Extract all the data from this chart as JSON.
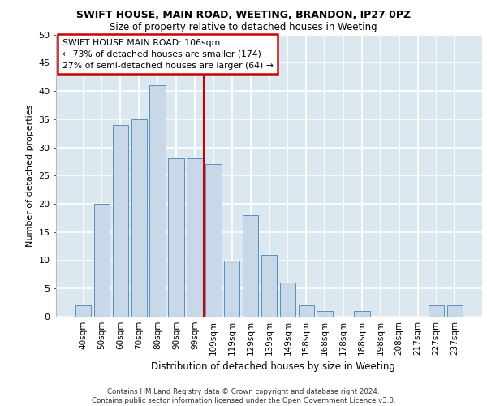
{
  "title_line1": "SWIFT HOUSE, MAIN ROAD, WEETING, BRANDON, IP27 0PZ",
  "title_line2": "Size of property relative to detached houses in Weeting",
  "xlabel": "Distribution of detached houses by size in Weeting",
  "ylabel": "Number of detached properties",
  "categories": [
    "40sqm",
    "50sqm",
    "60sqm",
    "70sqm",
    "80sqm",
    "90sqm",
    "99sqm",
    "109sqm",
    "119sqm",
    "129sqm",
    "139sqm",
    "149sqm",
    "158sqm",
    "168sqm",
    "178sqm",
    "188sqm",
    "198sqm",
    "208sqm",
    "217sqm",
    "227sqm",
    "237sqm"
  ],
  "values": [
    2,
    20,
    34,
    35,
    41,
    28,
    28,
    27,
    10,
    18,
    11,
    6,
    2,
    1,
    0,
    1,
    0,
    0,
    0,
    2,
    2
  ],
  "bar_color": "#c8d8e8",
  "bar_edgecolor": "#5a8fc0",
  "vline_color": "#cc0000",
  "annotation_text": "SWIFT HOUSE MAIN ROAD: 106sqm\n← 73% of detached houses are smaller (174)\n27% of semi-detached houses are larger (64) →",
  "annotation_box_edgecolor": "#cc0000",
  "background_color": "#dce8f0",
  "grid_color": "#ffffff",
  "footer_text": "Contains HM Land Registry data © Crown copyright and database right 2024.\nContains public sector information licensed under the Open Government Licence v3.0.",
  "ylim": [
    0,
    50
  ],
  "yticks": [
    0,
    5,
    10,
    15,
    20,
    25,
    30,
    35,
    40,
    45,
    50
  ]
}
